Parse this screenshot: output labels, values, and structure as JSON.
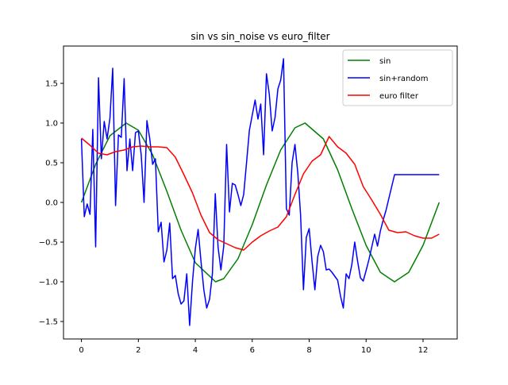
{
  "chart_data": {
    "type": "line",
    "title": "sin vs sin_noise vs euro_filter",
    "xlabel": "",
    "ylabel": "",
    "xlim": [
      -0.63,
      13.2
    ],
    "ylim": [
      -1.72,
      1.97
    ],
    "xticks": [
      0,
      2,
      4,
      6,
      8,
      10,
      12
    ],
    "yticks": [
      -1.5,
      -1.0,
      -0.5,
      0.0,
      0.5,
      1.0,
      1.5
    ],
    "xtick_labels": [
      "0",
      "2",
      "4",
      "6",
      "8",
      "10",
      "12"
    ],
    "ytick_labels": [
      "−1.5",
      "−1.0",
      "−0.5",
      "0.0",
      "0.5",
      "1.0",
      "1.5"
    ],
    "grid": false,
    "legend_position": "top-right",
    "series": [
      {
        "name": "sin",
        "color": "#008000",
        "x": [
          0,
          0.5,
          1.0,
          1.5708,
          2.0,
          2.5,
          3.0,
          3.5,
          4.0,
          4.7124,
          5.0,
          5.5,
          6.0,
          6.5,
          7.0,
          7.5,
          7.854,
          8.5,
          9.0,
          9.5,
          10.0,
          10.5,
          10.996,
          11.5,
          12.0,
          12.566
        ],
        "values": [
          0,
          0.48,
          0.84,
          1.0,
          0.91,
          0.6,
          0.14,
          -0.35,
          -0.76,
          -1.0,
          -0.96,
          -0.71,
          -0.28,
          0.22,
          0.66,
          0.94,
          1.0,
          0.8,
          0.41,
          -0.08,
          -0.54,
          -0.88,
          -1.0,
          -0.88,
          -0.54,
          0
        ]
      },
      {
        "name": "sin+random",
        "color": "#0000ff",
        "x": [
          0,
          0.1,
          0.2,
          0.3,
          0.4,
          0.5,
          0.6,
          0.7,
          0.8,
          0.9,
          1.0,
          1.1,
          1.2,
          1.3,
          1.4,
          1.5,
          1.6,
          1.7,
          1.8,
          1.9,
          2.0,
          2.1,
          2.2,
          2.3,
          2.4,
          2.5,
          2.6,
          2.7,
          2.8,
          2.9,
          3.0,
          3.1,
          3.2,
          3.3,
          3.4,
          3.5,
          3.6,
          3.7,
          3.8,
          3.9,
          4.0,
          4.1,
          4.2,
          4.3,
          4.4,
          4.5,
          4.6,
          4.7,
          4.8,
          4.9,
          5.0,
          5.1,
          5.2,
          5.3,
          5.4,
          5.5,
          5.6,
          5.7,
          5.8,
          5.9,
          6.0,
          6.1,
          6.2,
          6.3,
          6.4,
          6.5,
          6.6,
          6.7,
          6.8,
          6.9,
          7.0,
          7.1,
          7.2,
          7.3,
          7.4,
          7.5,
          7.6,
          7.7,
          7.8,
          7.9,
          8.0,
          8.1,
          8.2,
          8.3,
          8.4,
          8.5,
          8.6,
          8.7,
          8.8,
          8.9,
          9.0,
          9.1,
          9.2,
          9.3,
          9.4,
          9.5,
          9.6,
          9.7,
          9.8,
          9.9,
          10.0,
          10.1,
          10.2,
          10.3,
          10.4,
          10.5,
          10.6,
          10.7,
          10.8,
          10.9,
          11.0,
          11.1,
          11.2,
          11.3,
          11.4,
          11.5,
          11.6,
          11.7,
          11.8,
          11.9,
          12.0,
          12.1,
          12.2,
          12.3,
          12.4,
          12.5,
          12.566
        ],
        "values": [
          0.8,
          -0.18,
          -0.02,
          -0.15,
          0.92,
          -0.56,
          1.57,
          0.55,
          1.02,
          0.8,
          1.06,
          1.69,
          -0.04,
          0.85,
          0.82,
          1.56,
          0.4,
          0.8,
          0.4,
          0.88,
          0.9,
          0.6,
          0.0,
          1.03,
          0.8,
          0.48,
          0.55,
          -0.37,
          -0.25,
          -0.75,
          -0.6,
          -0.26,
          -0.96,
          -0.92,
          -1.15,
          -1.28,
          -1.24,
          -0.9,
          -1.55,
          -1.0,
          -0.58,
          -0.34,
          -0.74,
          -1.1,
          -1.33,
          -1.22,
          -0.9,
          0.11,
          -0.56,
          -0.85,
          -0.55,
          0.73,
          -0.12,
          0.24,
          0.22,
          0.1,
          -0.04,
          0.1,
          0.5,
          0.91,
          1.1,
          1.29,
          1.05,
          1.24,
          0.6,
          1.62,
          1.36,
          0.9,
          1.07,
          1.43,
          1.54,
          1.81,
          -0.08,
          -0.16,
          0.5,
          0.73,
          0.37,
          -0.16,
          -1.1,
          -0.44,
          -0.33,
          -0.74,
          -1.1,
          -0.68,
          -0.54,
          -0.62,
          -0.85,
          -0.84,
          -0.88,
          -0.93,
          -0.98,
          -1.18,
          -1.33,
          -0.9,
          -0.96,
          -0.78,
          -0.5,
          -0.74,
          -0.95,
          -0.99,
          -0.86,
          -0.72,
          -0.56,
          -0.4,
          -0.55,
          -0.36,
          -0.22,
          -0.1,
          0.05,
          0.2,
          0.35,
          0.35,
          0.35,
          0.35,
          0.35,
          0.35,
          0.35,
          0.35,
          0.35,
          0.35,
          0.35,
          0.35,
          0.35,
          0.35,
          0.35,
          0.35,
          0.35
        ]
      },
      {
        "name": "euro filter",
        "color": "#ff0000",
        "x": [
          0,
          0.3,
          0.6,
          0.9,
          1.2,
          1.5,
          1.8,
          2.1,
          2.4,
          2.7,
          3.0,
          3.3,
          3.6,
          3.9,
          4.2,
          4.5,
          4.8,
          5.1,
          5.4,
          5.7,
          6.0,
          6.3,
          6.6,
          6.9,
          7.2,
          7.5,
          7.8,
          8.1,
          8.4,
          8.7,
          9.0,
          9.3,
          9.6,
          9.9,
          10.2,
          10.5,
          10.8,
          11.1,
          11.4,
          11.7,
          12.0,
          12.3,
          12.566
        ],
        "values": [
          0.81,
          0.72,
          0.62,
          0.6,
          0.64,
          0.66,
          0.7,
          0.71,
          0.7,
          0.7,
          0.69,
          0.57,
          0.35,
          0.12,
          -0.16,
          -0.38,
          -0.47,
          -0.52,
          -0.57,
          -0.6,
          -0.5,
          -0.42,
          -0.36,
          -0.31,
          -0.18,
          0.1,
          0.36,
          0.52,
          0.6,
          0.83,
          0.7,
          0.62,
          0.48,
          0.2,
          0.03,
          -0.15,
          -0.35,
          -0.38,
          -0.37,
          -0.42,
          -0.45,
          -0.45,
          -0.4
        ]
      }
    ]
  }
}
